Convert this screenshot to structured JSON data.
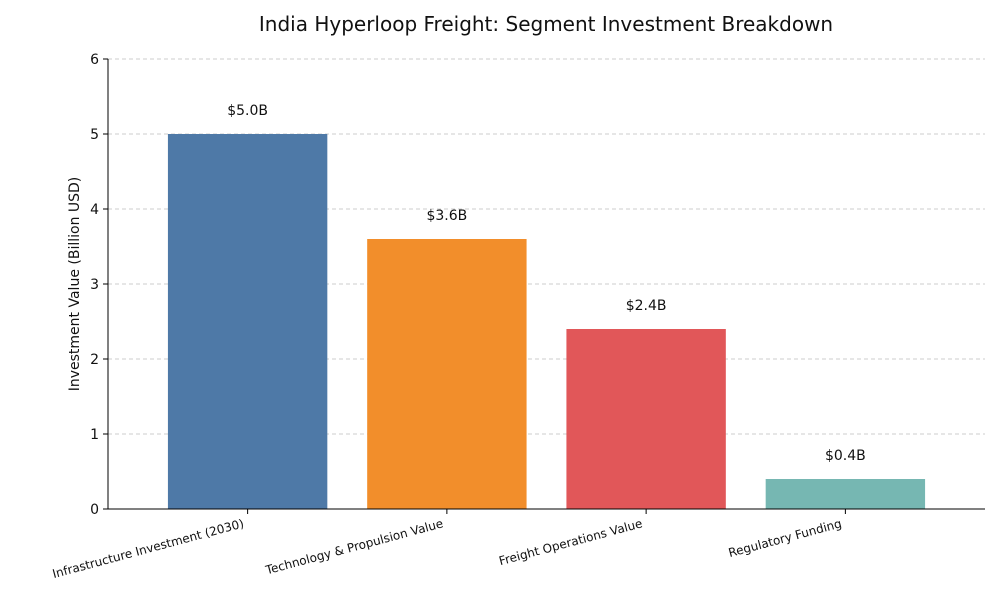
{
  "chart_data": {
    "type": "bar",
    "title": "India Hyperloop Freight: Segment Investment Breakdown",
    "xlabel": "",
    "ylabel": "Investment Value (Billion USD)",
    "ylim": [
      0,
      6
    ],
    "yticks": [
      "0",
      "1",
      "2",
      "3",
      "4",
      "5",
      "6"
    ],
    "grid": "horizontal-dashed",
    "legend": "none",
    "categories": [
      "Infrastructure Investment (2030)",
      "Technology & Propulsion Value",
      "Freight Operations Value",
      "Regulatory Funding"
    ],
    "values": [
      5.0,
      3.6,
      2.4,
      0.4
    ],
    "data_labels": [
      "$5.0B",
      "$3.6B",
      "$2.4B",
      "$0.4B"
    ],
    "colors": [
      "#4e79a7",
      "#f28e2b",
      "#e15759",
      "#76b7b2"
    ]
  }
}
